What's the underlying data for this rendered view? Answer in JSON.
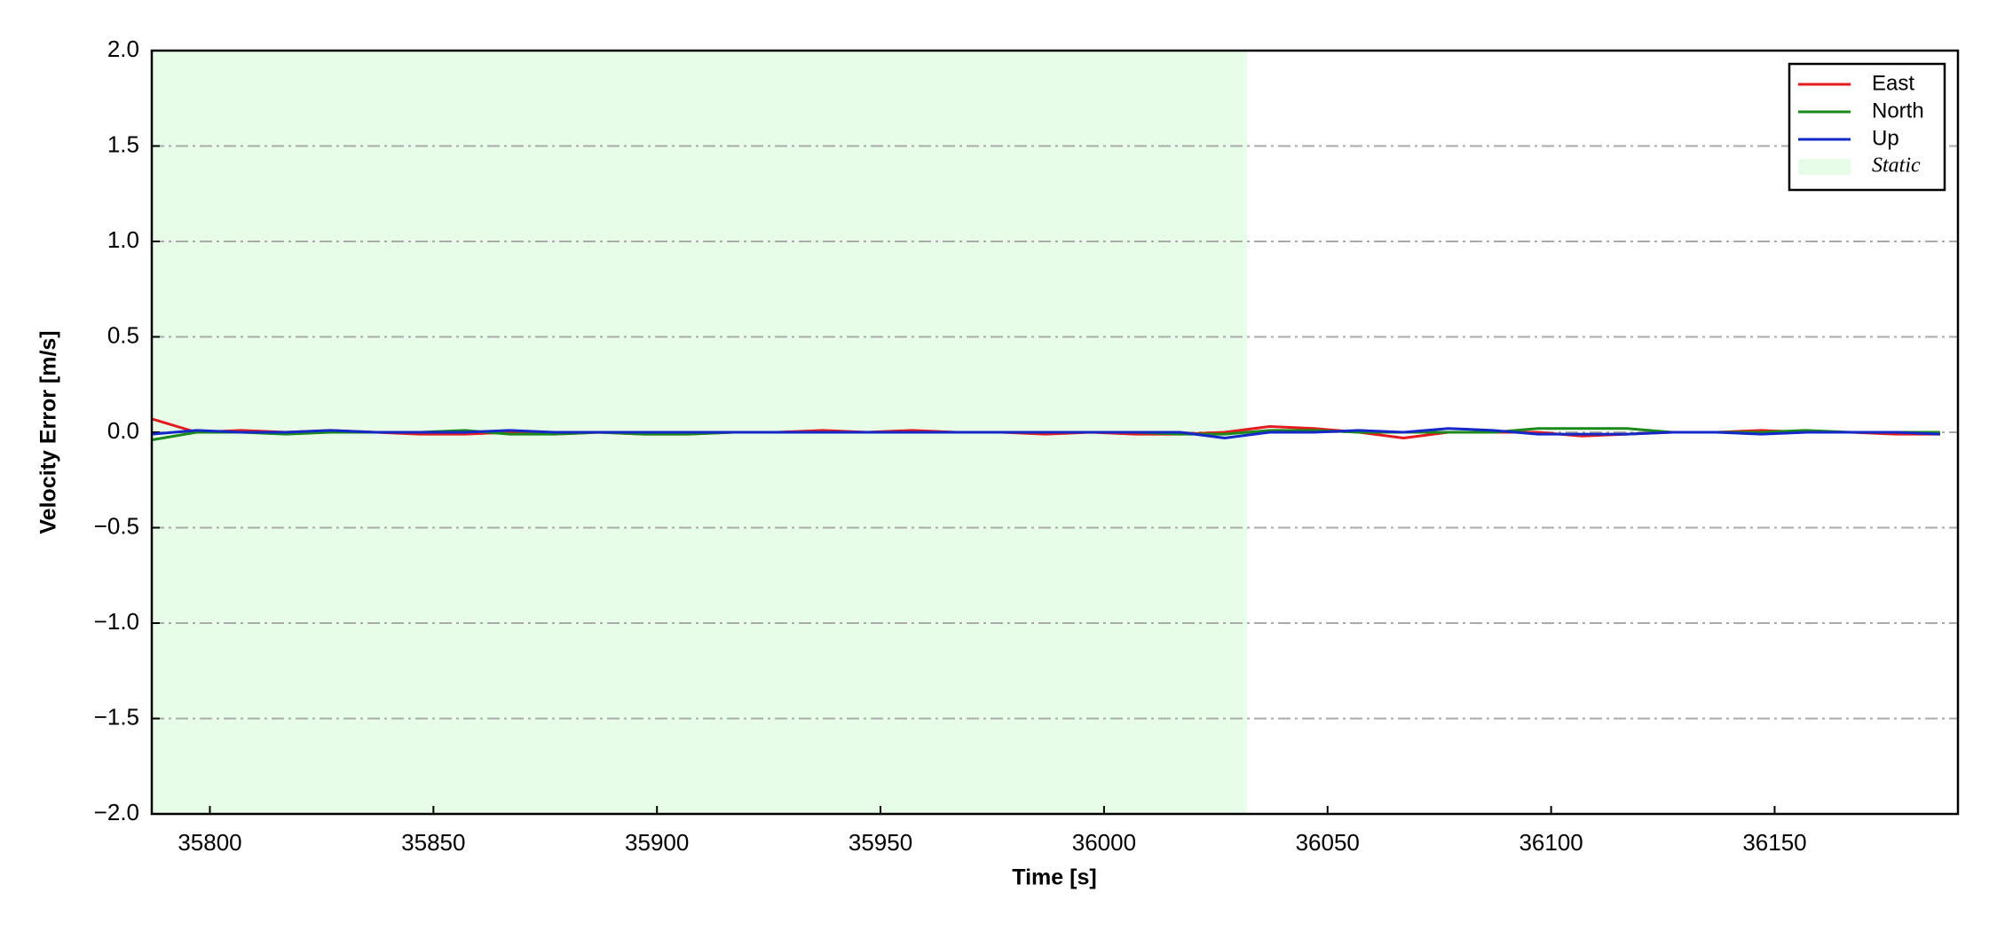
{
  "chart_data": {
    "type": "line",
    "xlabel": "Time [s]",
    "ylabel": "Velocity Error [m/s]",
    "x": [
      35787,
      35797,
      35807,
      35817,
      35827,
      35837,
      35847,
      35857,
      35867,
      35877,
      35887,
      35897,
      35907,
      35917,
      35927,
      35937,
      35947,
      35957,
      35967,
      35977,
      35987,
      35997,
      36007,
      36017,
      36027,
      36037,
      36047,
      36057,
      36067,
      36077,
      36087,
      36097,
      36107,
      36117,
      36127,
      36137,
      36147,
      36157,
      36167,
      36177,
      36187
    ],
    "series": [
      {
        "name": "East",
        "color": "#e41a1c",
        "values": [
          0.07,
          0.0,
          0.01,
          0.0,
          0.01,
          0.0,
          -0.01,
          -0.01,
          0.0,
          -0.01,
          0.0,
          -0.01,
          -0.01,
          0.0,
          0.0,
          0.01,
          0.0,
          0.01,
          0.0,
          0.0,
          -0.01,
          0.0,
          -0.01,
          -0.01,
          0.0,
          0.03,
          0.02,
          0.0,
          -0.03,
          0.0,
          0.0,
          0.0,
          -0.02,
          -0.01,
          0.0,
          0.0,
          0.01,
          0.0,
          0.0,
          -0.01,
          -0.01
        ]
      },
      {
        "name": "North",
        "color": "#1a8a1a",
        "values": [
          -0.04,
          0.0,
          0.0,
          -0.01,
          0.0,
          0.0,
          0.0,
          0.01,
          -0.01,
          -0.01,
          0.0,
          -0.01,
          -0.01,
          0.0,
          0.0,
          0.0,
          0.0,
          0.0,
          0.0,
          0.0,
          0.0,
          0.0,
          0.0,
          -0.01,
          -0.01,
          0.01,
          0.01,
          0.0,
          0.0,
          0.0,
          0.0,
          0.02,
          0.02,
          0.02,
          0.0,
          0.0,
          0.0,
          0.01,
          0.0,
          0.0,
          0.0
        ]
      },
      {
        "name": "Up",
        "color": "#1428c8",
        "values": [
          -0.01,
          0.01,
          0.0,
          0.0,
          0.01,
          0.0,
          0.0,
          0.0,
          0.01,
          0.0,
          0.0,
          0.0,
          0.0,
          0.0,
          0.0,
          0.0,
          0.0,
          0.0,
          0.0,
          0.0,
          0.0,
          0.0,
          0.0,
          0.0,
          -0.03,
          0.0,
          0.0,
          0.01,
          0.0,
          0.02,
          0.01,
          -0.01,
          -0.01,
          -0.01,
          0.0,
          0.0,
          -0.01,
          0.0,
          0.0,
          0.0,
          -0.01
        ]
      }
    ],
    "span": {
      "name": "Static",
      "color": "#e8fde8",
      "x": [
        35787,
        36032
      ]
    },
    "xlim": [
      35787,
      36191
    ],
    "xticks": [
      35800,
      35850,
      35900,
      35950,
      36000,
      36050,
      36100,
      36150
    ],
    "ylim": [
      -2,
      2
    ],
    "yticks": [
      {
        "value": -2,
        "label": "−2.0"
      },
      {
        "value": -1.5,
        "label": "−1.5"
      },
      {
        "value": -1,
        "label": "−1.0"
      },
      {
        "value": -0.5,
        "label": "−0.5"
      },
      {
        "value": 0,
        "label": "0.0"
      },
      {
        "value": 0.5,
        "label": "0.5"
      },
      {
        "value": 1,
        "label": "1.0"
      },
      {
        "value": 1.5,
        "label": "1.5"
      },
      {
        "value": 2,
        "label": "2.0"
      }
    ],
    "grid": true,
    "legend": "upper right"
  }
}
